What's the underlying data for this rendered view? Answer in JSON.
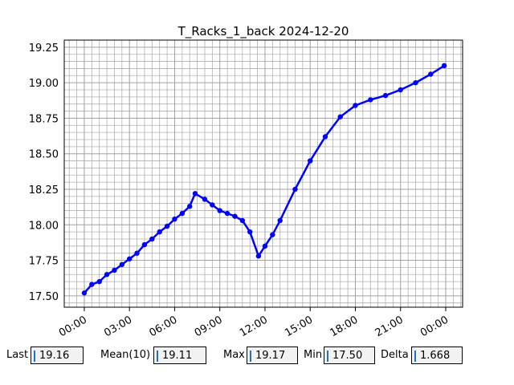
{
  "chart_data": {
    "type": "line",
    "title": "T_Racks_1_back 2024-12-20",
    "x": [
      0,
      0.5,
      1,
      1.5,
      2,
      2.5,
      3,
      3.5,
      4,
      4.5,
      5,
      5.5,
      6,
      6.5,
      7,
      7.36,
      8,
      8.5,
      9,
      9.5,
      10,
      10.5,
      11,
      11.57,
      12,
      12.5,
      13,
      14,
      15,
      16,
      17,
      18,
      19,
      20,
      21,
      22,
      23,
      23.9
    ],
    "series": [
      {
        "name": "T_Racks_1_back",
        "color": "#0000ff",
        "values": [
          17.52,
          17.58,
          17.6,
          17.65,
          17.68,
          17.72,
          17.76,
          17.8,
          17.86,
          17.9,
          17.95,
          17.99,
          18.04,
          18.08,
          18.13,
          18.22,
          18.18,
          18.14,
          18.1,
          18.08,
          18.06,
          18.03,
          17.95,
          17.78,
          17.85,
          17.93,
          18.03,
          18.25,
          18.45,
          18.62,
          18.76,
          18.84,
          18.88,
          18.91,
          18.95,
          19.0,
          19.06,
          19.12
        ]
      }
    ],
    "xlim": [
      -1.33,
      25.12
    ],
    "ylim": [
      17.42,
      19.3
    ],
    "xticks": [
      {
        "value": 0,
        "label": "00:00"
      },
      {
        "value": 3,
        "label": "03:00"
      },
      {
        "value": 6,
        "label": "06:00"
      },
      {
        "value": 9,
        "label": "09:00"
      },
      {
        "value": 12,
        "label": "12:00"
      },
      {
        "value": 15,
        "label": "15:00"
      },
      {
        "value": 18,
        "label": "18:00"
      },
      {
        "value": 21,
        "label": "21:00"
      },
      {
        "value": 24,
        "label": "00:00"
      }
    ],
    "yticks": [
      {
        "value": 17.5,
        "label": "17.50"
      },
      17.75,
      {
        "value": 18,
        "label": "18.00"
      },
      18.25,
      {
        "value": 18.5,
        "label": "18.50"
      },
      18.75,
      {
        "value": 19,
        "label": "19.00"
      },
      19.25
    ],
    "xminorticks": [
      -1,
      -0.5,
      0.5,
      1,
      1.5,
      2,
      2.5,
      3.5,
      4,
      4.5,
      5,
      5.5,
      6.5,
      7,
      7.5,
      8,
      8.5,
      9.5,
      10,
      10.5,
      11,
      11.5,
      12.5,
      13,
      13.5,
      14,
      14.5,
      15.5,
      16,
      16.5,
      17,
      17.5,
      18.5,
      19,
      19.5,
      20,
      20.5,
      21.5,
      22,
      22.5,
      23,
      23.5,
      24.5,
      25
    ],
    "yminorticks": [
      17.45,
      17.55,
      17.6,
      17.65,
      17.7,
      17.8,
      17.85,
      17.9,
      17.95,
      18.05,
      18.1,
      18.15,
      18.2,
      18.3,
      18.35,
      18.4,
      18.45,
      18.55,
      18.6,
      18.65,
      18.7,
      18.8,
      18.85,
      18.9,
      18.95,
      19.05,
      19.1,
      19.15,
      19.2
    ],
    "grid": true
  },
  "stats": [
    {
      "label": "Last",
      "value": "19.16"
    },
    {
      "label": "Mean(10)",
      "value": "19.11"
    },
    {
      "label": "Max",
      "value": "19.17"
    },
    {
      "label": "Min",
      "value": "17.50"
    },
    {
      "label": "Delta",
      "value": "1.668"
    }
  ]
}
